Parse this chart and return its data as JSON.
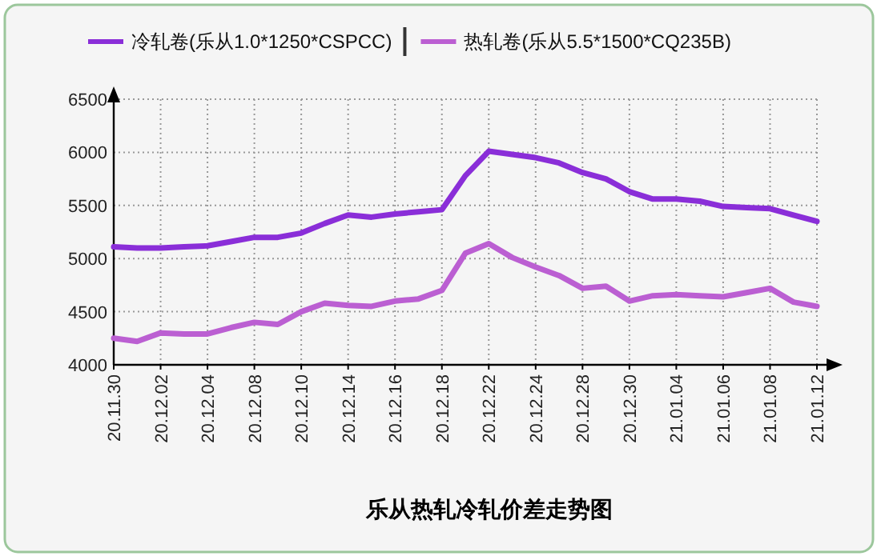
{
  "chart_data": {
    "type": "line",
    "title": "乐从热轧冷轧价差走势图",
    "categories": [
      "20.11.30",
      null,
      "20.12.02",
      null,
      "20.12.04",
      null,
      "20.12.08",
      null,
      "20.12.10",
      null,
      "20.12.14",
      null,
      "20.12.16",
      null,
      "20.12.18",
      null,
      "20.12.22",
      null,
      "20.12.24",
      null,
      "20.12.28",
      null,
      "20.12.30",
      null,
      "21.01.04",
      null,
      "21.01.06",
      null,
      "21.01.08",
      null,
      "21.01.12"
    ],
    "series": [
      {
        "name": "冷轧卷(乐从1.0*1250*CSPCC)",
        "color": "#8a2ed8",
        "values": [
          5110,
          5100,
          5100,
          5110,
          5120,
          5160,
          5200,
          5200,
          5240,
          5330,
          5410,
          5390,
          5420,
          5440,
          5460,
          5780,
          6010,
          5980,
          5950,
          5900,
          5810,
          5750,
          5630,
          5560,
          5560,
          5540,
          5490,
          5480,
          5470,
          5410,
          5350
        ]
      },
      {
        "name": "热轧卷(乐从5.5*1500*CQ235B)",
        "color": "#bb5fd2",
        "values": [
          4250,
          4220,
          4300,
          4290,
          4290,
          4350,
          4400,
          4380,
          4500,
          4580,
          4560,
          4550,
          4600,
          4620,
          4700,
          5050,
          5140,
          5010,
          4920,
          4840,
          4720,
          4740,
          4600,
          4650,
          4660,
          4650,
          4640,
          4680,
          4720,
          4590,
          4550
        ]
      }
    ],
    "ylim": [
      4000,
      6500
    ],
    "yticks": [
      4000,
      4500,
      5000,
      5500,
      6000,
      6500
    ],
    "grid": true,
    "legend": "top",
    "marker": "none",
    "line_style": "solid"
  }
}
